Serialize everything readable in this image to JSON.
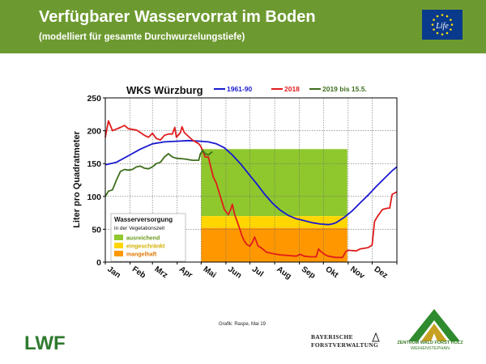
{
  "header": {
    "title": "Verfügbarer Wasservorrat im Boden",
    "subtitle": "(modelliert für gesamte Durchwurzelungstiefe)",
    "bg_color": "#6d9a30",
    "eu_logo": {
      "icon": "eu-life-flag-icon",
      "text": "Life"
    }
  },
  "footer": {
    "credit": "Grafik: Raspe, Mai 19",
    "lwf_logo": "LWF",
    "bayerische_line1": "BAYERISCHE",
    "bayerische_line2": "FORSTVERWALTUNG",
    "zwfh_line1": "ZENTRUM WALD FORST HOLZ",
    "zwfh_line2": "WEIHENSTEPHAN"
  },
  "chart_data": {
    "type": "line",
    "title": "WKS Würzburg",
    "xlabel": "",
    "ylabel": "Liter pro Quadratmeter",
    "ylim": [
      0,
      250
    ],
    "yticks": [
      0,
      50,
      100,
      150,
      200,
      250
    ],
    "xlim": [
      1,
      366
    ],
    "x_unit": "day of year",
    "month_labels": [
      "Jan",
      "Feb",
      "Mrz",
      "Apr",
      "Mai",
      "Jun",
      "Jul",
      "Aug",
      "Sep",
      "Okt",
      "Nov",
      "Dez"
    ],
    "grid": true,
    "series": [
      {
        "name": "1961-90",
        "color": "#1a1ad0",
        "points": [
          [
            1,
            148
          ],
          [
            15,
            152
          ],
          [
            30,
            162
          ],
          [
            45,
            172
          ],
          [
            60,
            180
          ],
          [
            75,
            183
          ],
          [
            90,
            184
          ],
          [
            105,
            185
          ],
          [
            120,
            184
          ],
          [
            130,
            183
          ],
          [
            140,
            180
          ],
          [
            150,
            174
          ],
          [
            160,
            163
          ],
          [
            170,
            150
          ],
          [
            180,
            135
          ],
          [
            190,
            120
          ],
          [
            200,
            104
          ],
          [
            210,
            90
          ],
          [
            220,
            79
          ],
          [
            230,
            71
          ],
          [
            240,
            66
          ],
          [
            250,
            63
          ],
          [
            260,
            60
          ],
          [
            270,
            58
          ],
          [
            280,
            57
          ],
          [
            285,
            58
          ],
          [
            290,
            60
          ],
          [
            300,
            68
          ],
          [
            310,
            78
          ],
          [
            320,
            90
          ],
          [
            330,
            102
          ],
          [
            340,
            115
          ],
          [
            350,
            127
          ],
          [
            360,
            139
          ],
          [
            366,
            145
          ]
        ]
      },
      {
        "name": "2018",
        "color": "#e01c1c",
        "points": [
          [
            1,
            190
          ],
          [
            5,
            215
          ],
          [
            10,
            200
          ],
          [
            20,
            205
          ],
          [
            25,
            208
          ],
          [
            30,
            203
          ],
          [
            40,
            201
          ],
          [
            50,
            193
          ],
          [
            55,
            190
          ],
          [
            60,
            196
          ],
          [
            65,
            188
          ],
          [
            70,
            186
          ],
          [
            75,
            193
          ],
          [
            80,
            195
          ],
          [
            85,
            195
          ],
          [
            88,
            205
          ],
          [
            90,
            190
          ],
          [
            95,
            197
          ],
          [
            97,
            206
          ],
          [
            100,
            197
          ],
          [
            110,
            186
          ],
          [
            118,
            180
          ],
          [
            120,
            177
          ],
          [
            123,
            170
          ],
          [
            126,
            160
          ],
          [
            130,
            160
          ],
          [
            133,
            145
          ],
          [
            136,
            130
          ],
          [
            140,
            120
          ],
          [
            145,
            100
          ],
          [
            150,
            80
          ],
          [
            155,
            72
          ],
          [
            158,
            80
          ],
          [
            160,
            88
          ],
          [
            163,
            72
          ],
          [
            168,
            55
          ],
          [
            172,
            40
          ],
          [
            175,
            32
          ],
          [
            178,
            27
          ],
          [
            182,
            24
          ],
          [
            185,
            30
          ],
          [
            188,
            38
          ],
          [
            192,
            25
          ],
          [
            198,
            20
          ],
          [
            203,
            15
          ],
          [
            210,
            13
          ],
          [
            220,
            11
          ],
          [
            230,
            10
          ],
          [
            240,
            9
          ],
          [
            245,
            12
          ],
          [
            250,
            9
          ],
          [
            258,
            8
          ],
          [
            265,
            8
          ],
          [
            268,
            20
          ],
          [
            270,
            17
          ],
          [
            275,
            12
          ],
          [
            280,
            9
          ],
          [
            290,
            7
          ],
          [
            298,
            7
          ],
          [
            302,
            16
          ],
          [
            305,
            18
          ],
          [
            315,
            17
          ],
          [
            320,
            20
          ],
          [
            330,
            22
          ],
          [
            335,
            26
          ],
          [
            338,
            62
          ],
          [
            342,
            70
          ],
          [
            348,
            80
          ],
          [
            354,
            82
          ],
          [
            357,
            82
          ],
          [
            360,
            103
          ],
          [
            366,
            107
          ]
        ]
      },
      {
        "name": "2019 bis 15.5.",
        "color": "#3e6e1c",
        "points": [
          [
            1,
            100
          ],
          [
            5,
            108
          ],
          [
            10,
            110
          ],
          [
            15,
            125
          ],
          [
            20,
            138
          ],
          [
            25,
            141
          ],
          [
            30,
            140
          ],
          [
            35,
            141
          ],
          [
            40,
            145
          ],
          [
            45,
            146
          ],
          [
            50,
            143
          ],
          [
            55,
            142
          ],
          [
            60,
            145
          ],
          [
            65,
            150
          ],
          [
            70,
            152
          ],
          [
            75,
            160
          ],
          [
            80,
            165
          ],
          [
            85,
            160
          ],
          [
            90,
            158
          ],
          [
            100,
            157
          ],
          [
            110,
            155
          ],
          [
            118,
            155
          ],
          [
            120,
            165
          ],
          [
            123,
            170
          ],
          [
            126,
            165
          ],
          [
            130,
            163
          ],
          [
            135,
            168
          ]
        ]
      }
    ],
    "zones": {
      "legend_title": "Wasserversorgung",
      "legend_subtitle": "in der Vegetationszeit",
      "period": [
        121,
        304
      ],
      "items": [
        {
          "name": "ausreichend",
          "color": "#8fc82d",
          "range": [
            70,
            172
          ]
        },
        {
          "name": "eingeschränkt",
          "color": "#ffd600",
          "range": [
            52,
            70
          ]
        },
        {
          "name": "mangelhaft",
          "color": "#ff9800",
          "range": [
            0,
            52
          ]
        }
      ]
    }
  }
}
